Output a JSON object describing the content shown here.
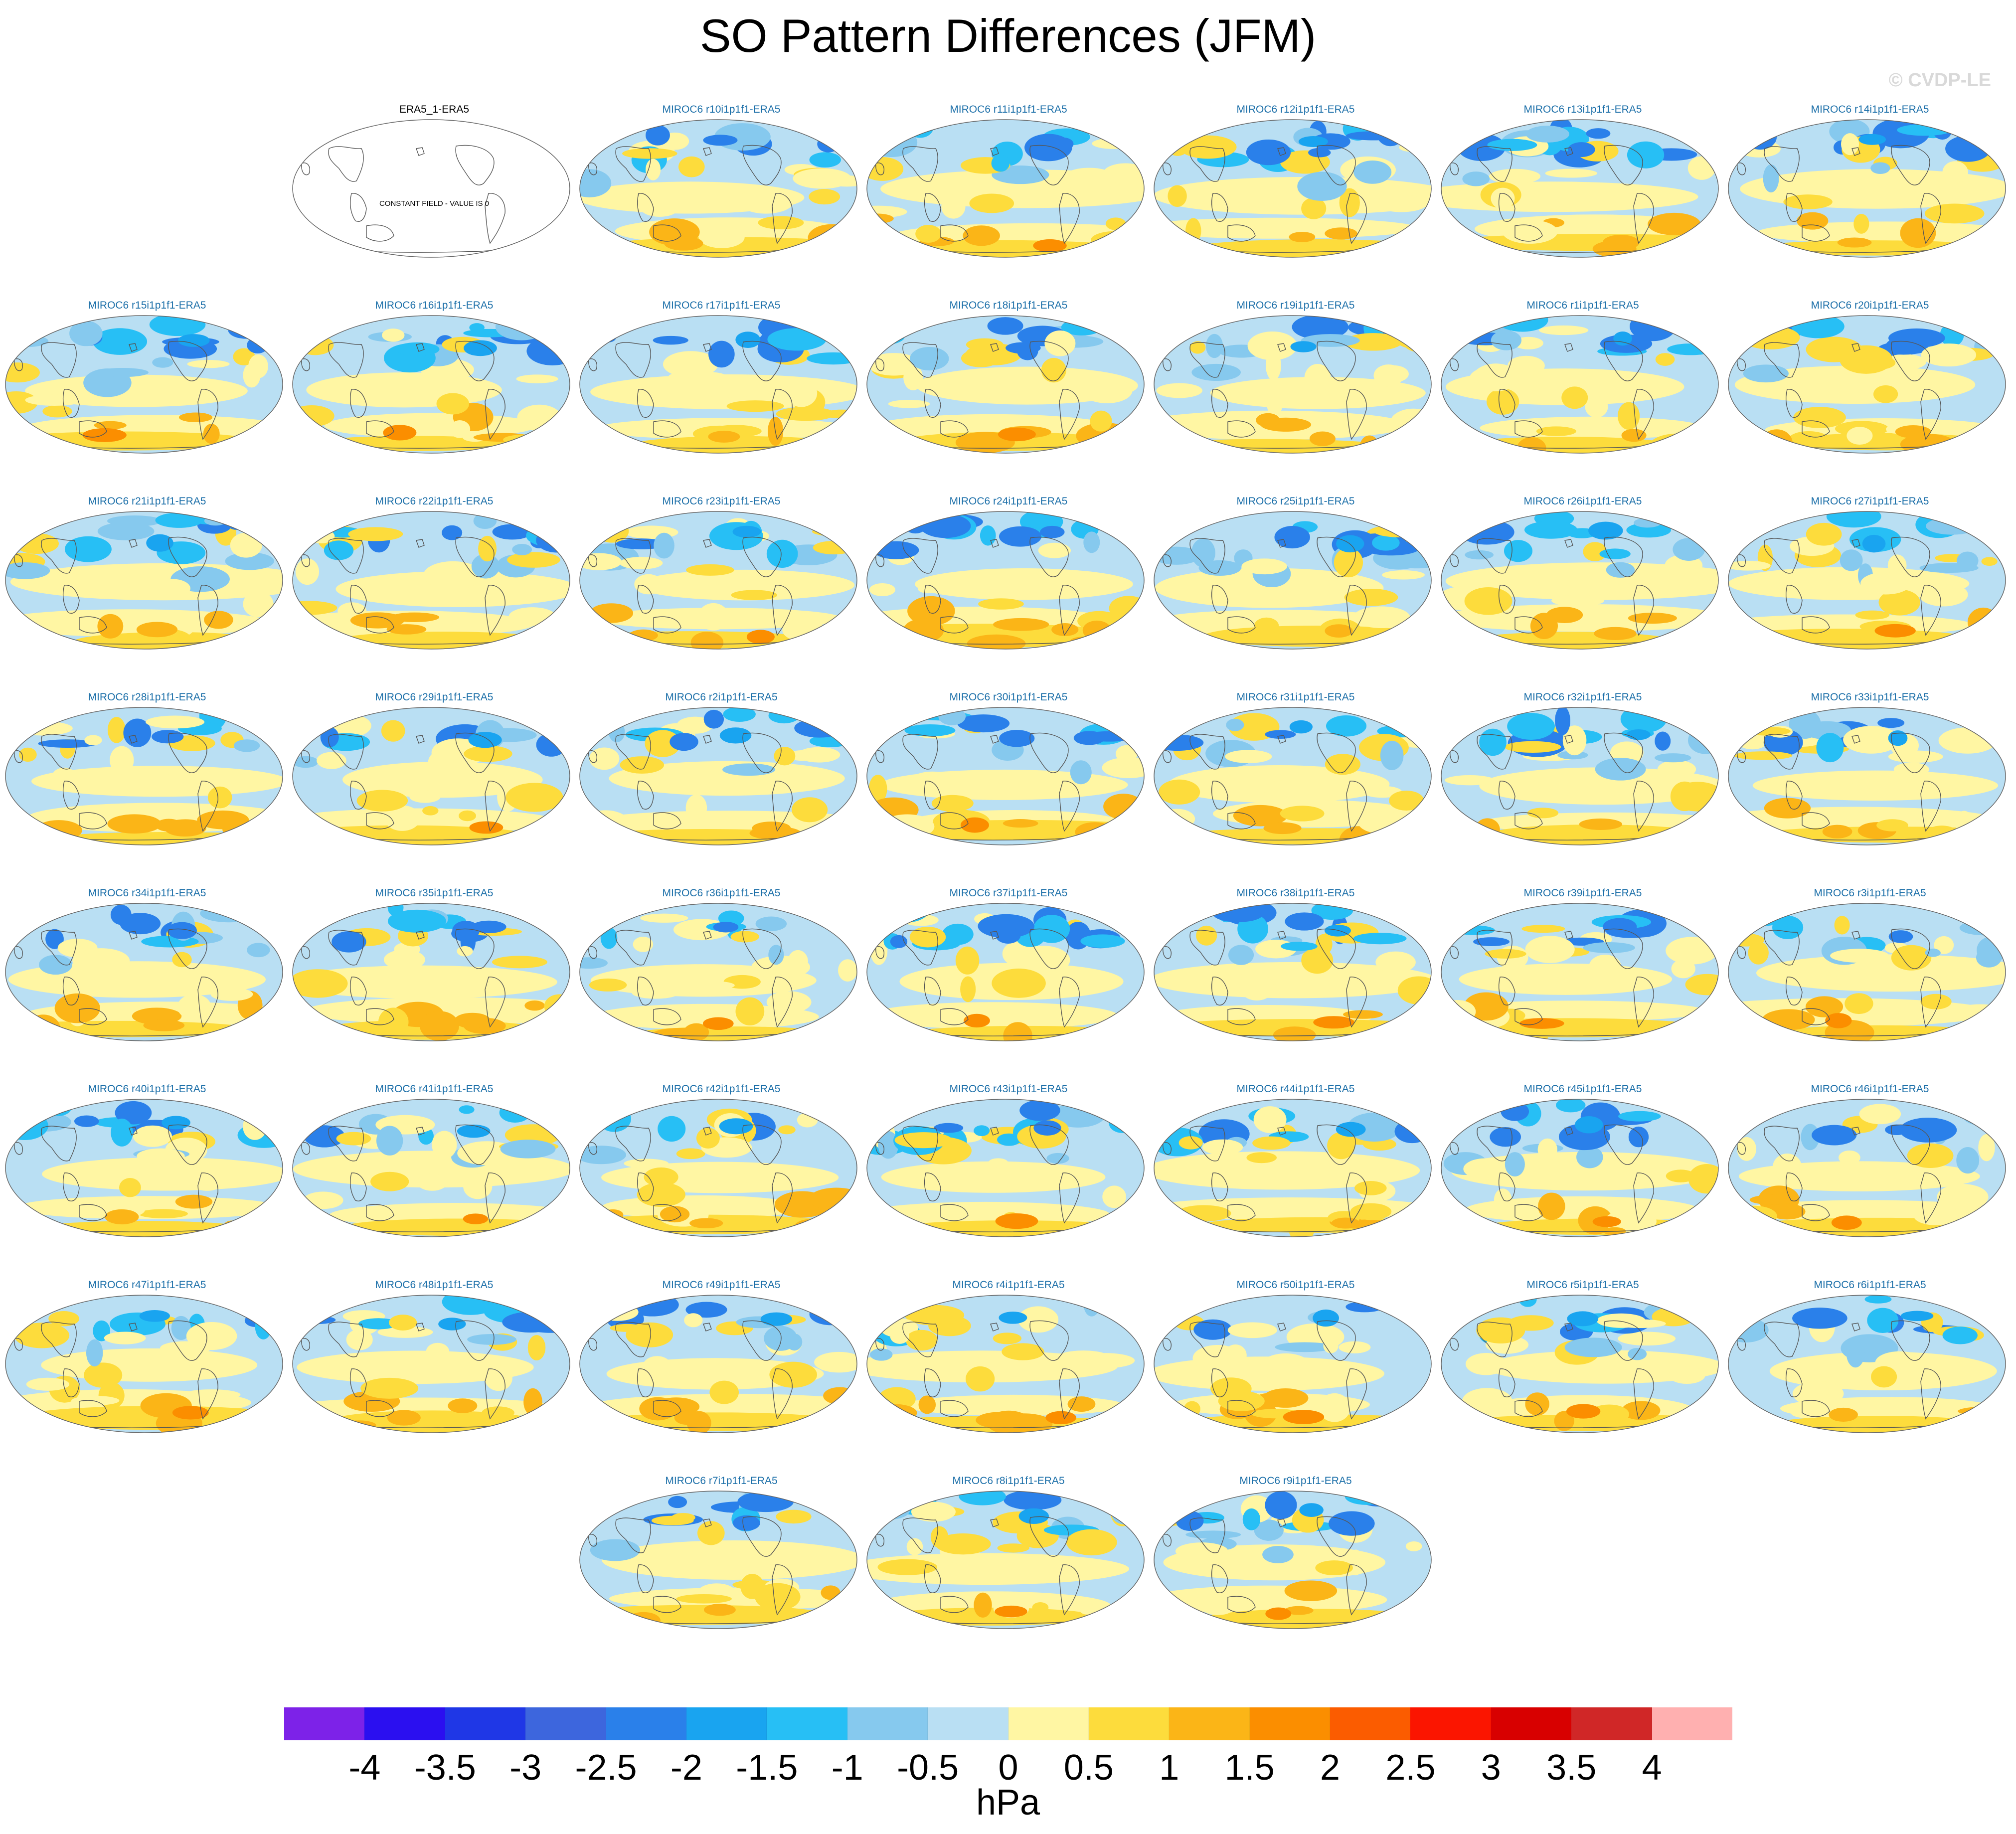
{
  "title": "SO Pattern Differences (JFM)",
  "copyright": "© CVDP-LE",
  "chart_data": {
    "type": "heatmap",
    "title": "SO Pattern Differences (JFM)",
    "projection": "Robinson (global)",
    "units": "hPa",
    "levels": [
      -4,
      -3.5,
      -3,
      -2.5,
      -2,
      -1.5,
      -1,
      -0.5,
      0,
      0.5,
      1,
      1.5,
      2,
      2.5,
      3,
      3.5,
      4
    ],
    "colors": [
      "#7d22e8",
      "#2b0ff0",
      "#1f37e6",
      "#3d66dd",
      "#2a80ea",
      "#19a4f0",
      "#27bff5",
      "#86c9ee",
      "#b9dff3",
      "#fff6a3",
      "#fddc3c",
      "#fbb517",
      "#fb8e00",
      "#fb5c00",
      "#fb1500",
      "#d80000",
      "#d02727",
      "#ffb0b0"
    ],
    "reference_panel": {
      "label": "ERA5_1-ERA5",
      "note": "CONSTANT FIELD - VALUE IS 0"
    },
    "panels": [
      "MIROC6 r10i1p1f1-ERA5",
      "MIROC6 r11i1p1f1-ERA5",
      "MIROC6 r12i1p1f1-ERA5",
      "MIROC6 r13i1p1f1-ERA5",
      "MIROC6 r14i1p1f1-ERA5",
      "MIROC6 r15i1p1f1-ERA5",
      "MIROC6 r16i1p1f1-ERA5",
      "MIROC6 r17i1p1f1-ERA5",
      "MIROC6 r18i1p1f1-ERA5",
      "MIROC6 r19i1p1f1-ERA5",
      "MIROC6 r1i1p1f1-ERA5",
      "MIROC6 r20i1p1f1-ERA5",
      "MIROC6 r21i1p1f1-ERA5",
      "MIROC6 r22i1p1f1-ERA5",
      "MIROC6 r23i1p1f1-ERA5",
      "MIROC6 r24i1p1f1-ERA5",
      "MIROC6 r25i1p1f1-ERA5",
      "MIROC6 r26i1p1f1-ERA5",
      "MIROC6 r27i1p1f1-ERA5",
      "MIROC6 r28i1p1f1-ERA5",
      "MIROC6 r29i1p1f1-ERA5",
      "MIROC6 r2i1p1f1-ERA5",
      "MIROC6 r30i1p1f1-ERA5",
      "MIROC6 r31i1p1f1-ERA5",
      "MIROC6 r32i1p1f1-ERA5",
      "MIROC6 r33i1p1f1-ERA5",
      "MIROC6 r34i1p1f1-ERA5",
      "MIROC6 r35i1p1f1-ERA5",
      "MIROC6 r36i1p1f1-ERA5",
      "MIROC6 r37i1p1f1-ERA5",
      "MIROC6 r38i1p1f1-ERA5",
      "MIROC6 r39i1p1f1-ERA5",
      "MIROC6 r3i1p1f1-ERA5",
      "MIROC6 r40i1p1f1-ERA5",
      "MIROC6 r41i1p1f1-ERA5",
      "MIROC6 r42i1p1f1-ERA5",
      "MIROC6 r43i1p1f1-ERA5",
      "MIROC6 r44i1p1f1-ERA5",
      "MIROC6 r45i1p1f1-ERA5",
      "MIROC6 r46i1p1f1-ERA5",
      "MIROC6 r47i1p1f1-ERA5",
      "MIROC6 r48i1p1f1-ERA5",
      "MIROC6 r49i1p1f1-ERA5",
      "MIROC6 r4i1p1f1-ERA5",
      "MIROC6 r50i1p1f1-ERA5",
      "MIROC6 r5i1p1f1-ERA5",
      "MIROC6 r6i1p1f1-ERA5",
      "MIROC6 r7i1p1f1-ERA5",
      "MIROC6 r8i1p1f1-ERA5",
      "MIROC6 r9i1p1f1-ERA5"
    ]
  }
}
